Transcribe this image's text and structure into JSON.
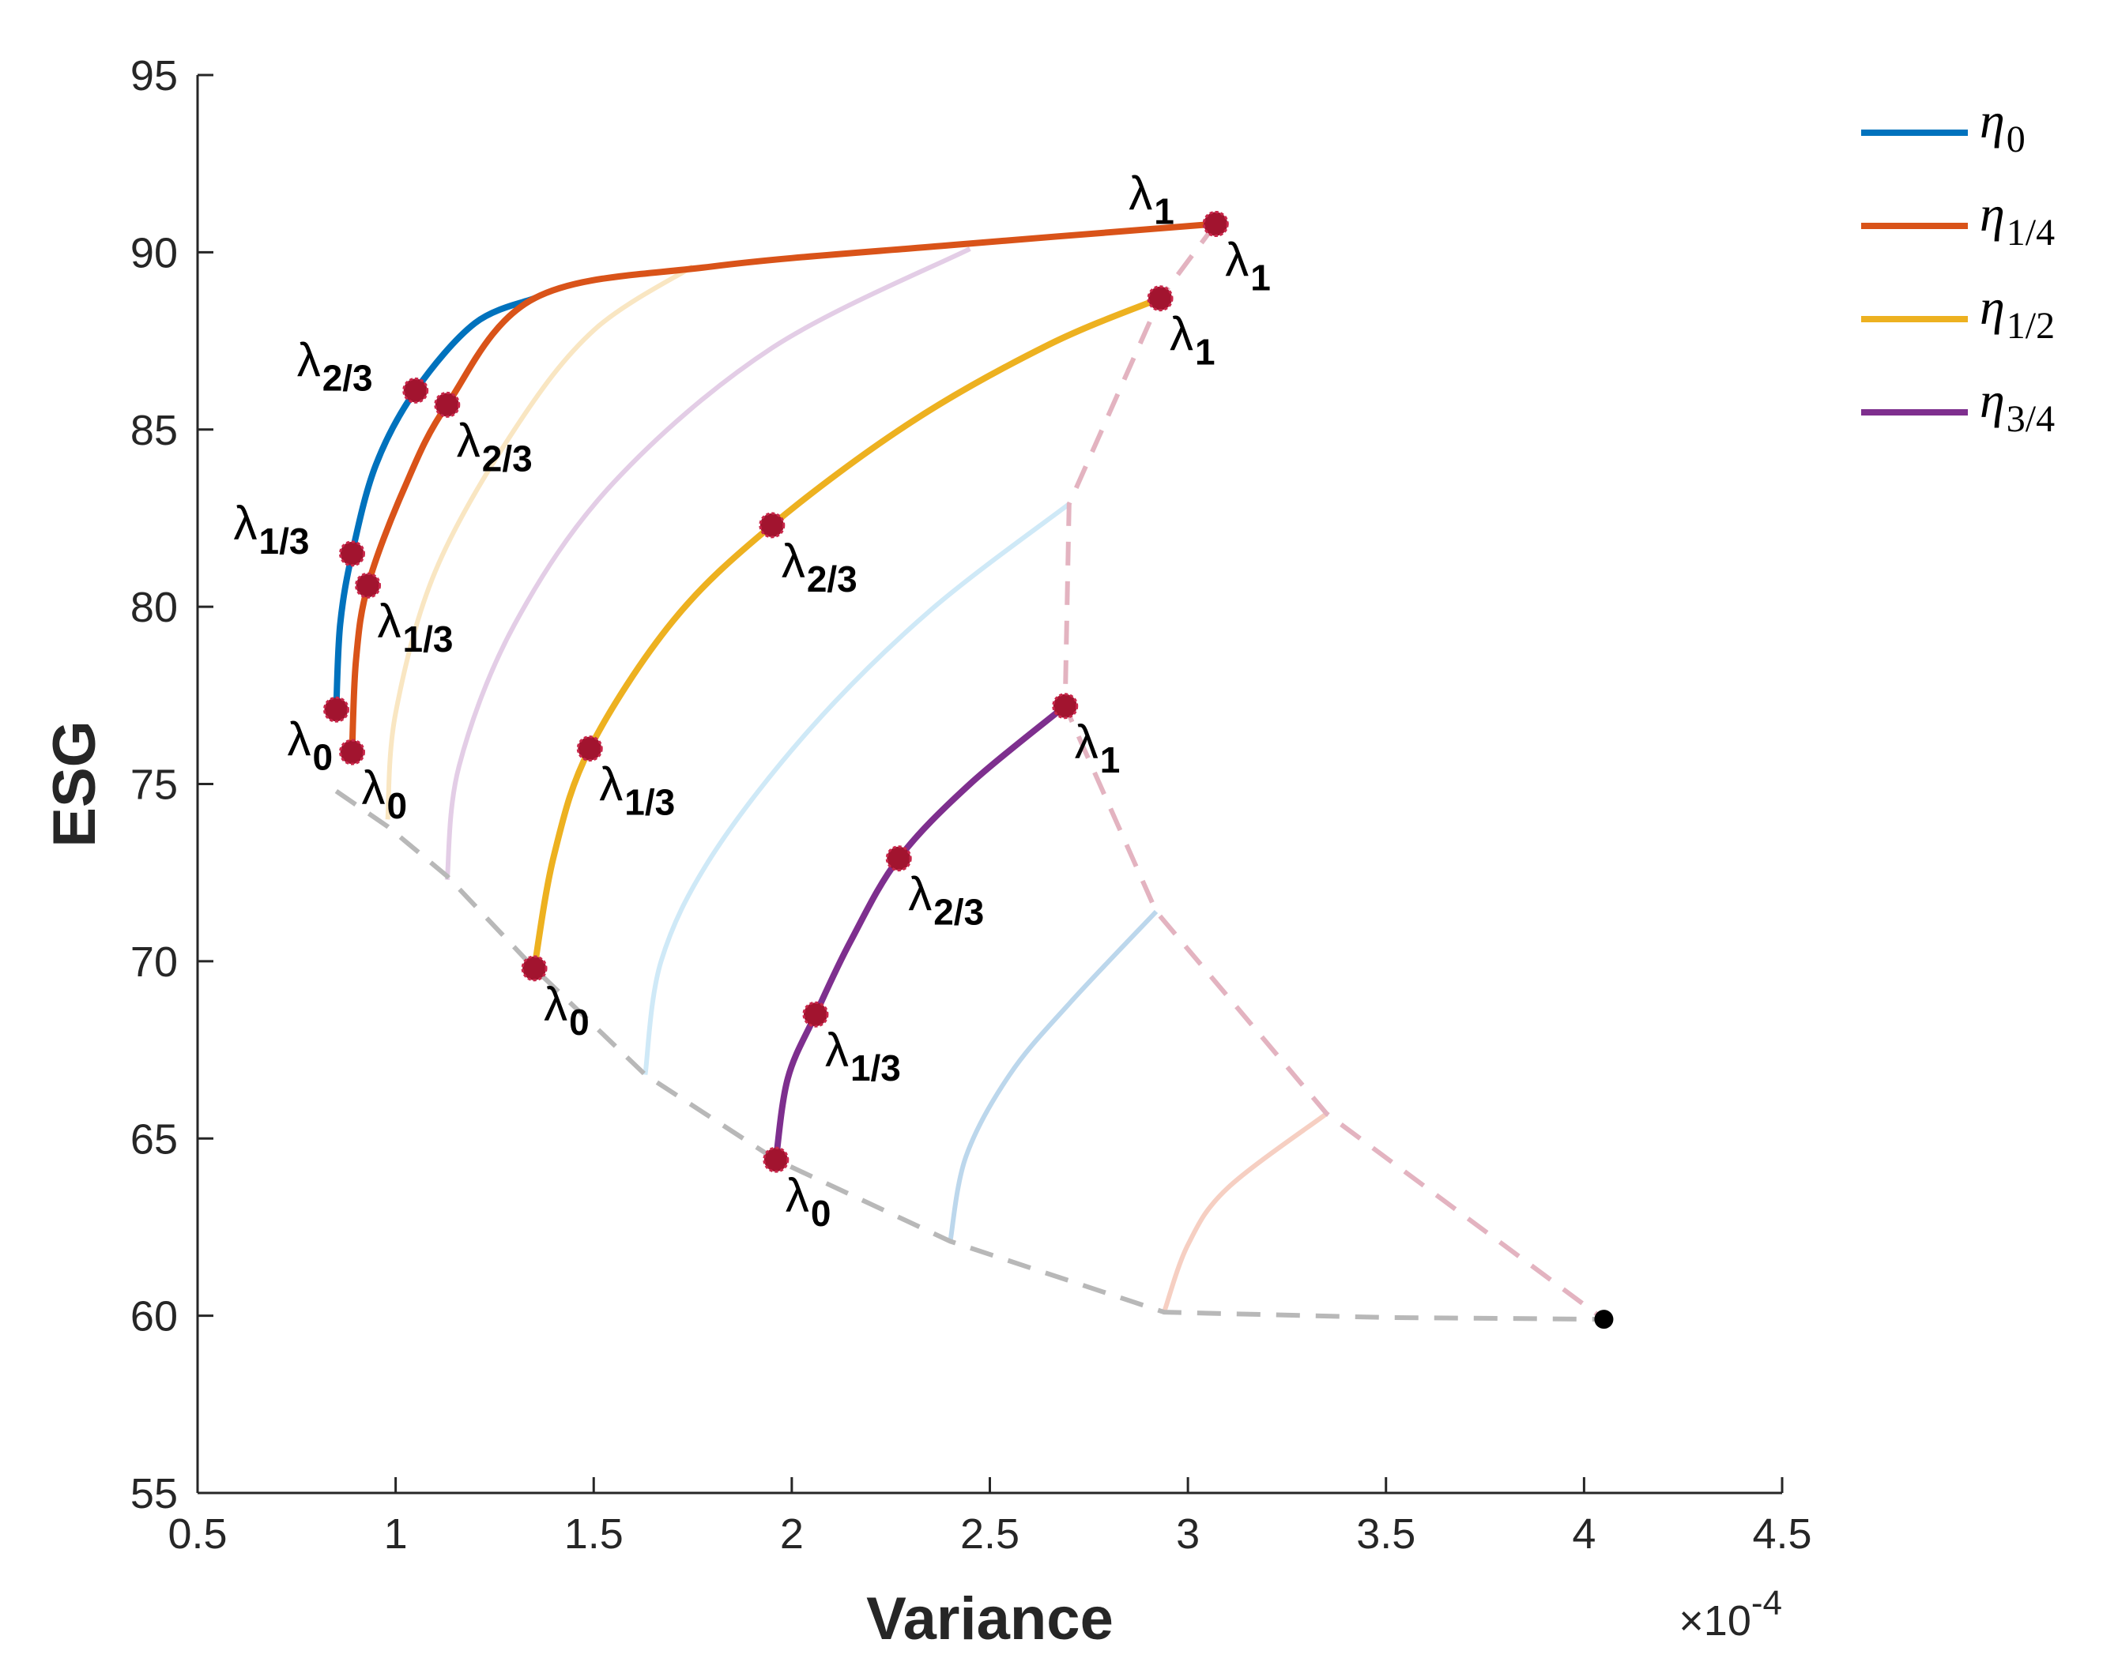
{
  "chart_data": {
    "type": "line",
    "xlabel": "Variance",
    "ylabel": "ESG",
    "x_exponent_label": "×10",
    "x_exponent_power": "-4",
    "xlim": [
      0.5,
      4.5
    ],
    "ylim": [
      55,
      95
    ],
    "xticks": [
      "0.5",
      "1",
      "1.5",
      "2",
      "2.5",
      "3",
      "3.5",
      "4",
      "4.5"
    ],
    "yticks": [
      "55",
      "60",
      "65",
      "70",
      "75",
      "80",
      "85",
      "90",
      "95"
    ],
    "colors": {
      "eta0": "#0072BD",
      "eta14": "#D95319",
      "eta12": "#EDB120",
      "eta34": "#7E2F8E",
      "marker": "#A2142F",
      "gray_dash": "#b8b8b8",
      "pink_dash": "#e3b3c0"
    },
    "legend": [
      {
        "symbol": "η",
        "sub": "0",
        "color": "#0072BD"
      },
      {
        "symbol": "η",
        "sub": "1/4",
        "color": "#D95319"
      },
      {
        "symbol": "η",
        "sub": "1/2",
        "color": "#EDB120"
      },
      {
        "symbol": "η",
        "sub": "3/4",
        "color": "#7E2F8E"
      }
    ],
    "series": [
      {
        "name": "η0",
        "color": "#0072BD",
        "curve": [
          [
            0.85,
            77.1
          ],
          [
            0.86,
            79.5
          ],
          [
            0.89,
            81.5
          ],
          [
            0.95,
            84.0
          ],
          [
            1.05,
            86.1
          ],
          [
            1.2,
            88.0
          ],
          [
            1.35,
            88.7
          ]
        ],
        "markers": [
          {
            "x": 0.85,
            "y": 77.1,
            "label": "λ",
            "sub": "0",
            "side": "bl"
          },
          {
            "x": 0.89,
            "y": 81.5,
            "label": "λ",
            "sub": "1/3",
            "side": "tl"
          },
          {
            "x": 1.05,
            "y": 86.1,
            "label": "λ",
            "sub": "2/3",
            "side": "tl"
          }
        ]
      },
      {
        "name": "η1/4",
        "color": "#D95319",
        "curve": [
          [
            0.89,
            75.9
          ],
          [
            0.9,
            78.5
          ],
          [
            0.93,
            80.6
          ],
          [
            1.02,
            83.3
          ],
          [
            1.13,
            85.7
          ],
          [
            1.35,
            88.7
          ],
          [
            1.8,
            89.6
          ],
          [
            2.4,
            90.2
          ],
          [
            3.07,
            90.8
          ]
        ],
        "markers": [
          {
            "x": 0.89,
            "y": 75.9,
            "label": "λ",
            "sub": "0",
            "side": "br"
          },
          {
            "x": 0.93,
            "y": 80.6,
            "label": "λ",
            "sub": "1/3",
            "side": "br"
          },
          {
            "x": 1.13,
            "y": 85.7,
            "label": "λ",
            "sub": "2/3",
            "side": "br"
          },
          {
            "x": 3.07,
            "y": 90.8,
            "label": "λ",
            "sub": "1",
            "side": "tl"
          },
          {
            "x": 3.07,
            "y": 90.8,
            "label": "λ",
            "sub": "1",
            "side": "br"
          }
        ]
      },
      {
        "name": "η1/2",
        "color": "#EDB120",
        "curve": [
          [
            1.35,
            69.8
          ],
          [
            1.4,
            73.0
          ],
          [
            1.49,
            76.0
          ],
          [
            1.7,
            79.6
          ],
          [
            1.95,
            82.3
          ],
          [
            2.3,
            85.2
          ],
          [
            2.65,
            87.4
          ],
          [
            2.93,
            88.7
          ]
        ],
        "markers": [
          {
            "x": 1.35,
            "y": 69.8,
            "label": "λ",
            "sub": "0",
            "side": "br"
          },
          {
            "x": 1.49,
            "y": 76.0,
            "label": "λ",
            "sub": "1/3",
            "side": "br"
          },
          {
            "x": 1.95,
            "y": 82.3,
            "label": "λ",
            "sub": "2/3",
            "side": "br"
          },
          {
            "x": 2.93,
            "y": 88.7,
            "label": "λ",
            "sub": "1",
            "side": "br"
          }
        ]
      },
      {
        "name": "η3/4",
        "color": "#7E2F8E",
        "curve": [
          [
            1.96,
            64.4
          ],
          [
            1.99,
            66.7
          ],
          [
            2.06,
            68.5
          ],
          [
            2.15,
            70.6
          ],
          [
            2.27,
            72.9
          ],
          [
            2.45,
            75.0
          ],
          [
            2.69,
            77.2
          ]
        ],
        "markers": [
          {
            "x": 1.96,
            "y": 64.4,
            "label": "λ",
            "sub": "0",
            "side": "br"
          },
          {
            "x": 2.06,
            "y": 68.5,
            "label": "λ",
            "sub": "1/3",
            "side": "br"
          },
          {
            "x": 2.27,
            "y": 72.9,
            "label": "λ",
            "sub": "2/3",
            "side": "br"
          },
          {
            "x": 2.69,
            "y": 77.2,
            "label": "λ",
            "sub": "1",
            "side": "br"
          }
        ]
      }
    ],
    "faint_curves": [
      {
        "color": "#f9e6c2",
        "points": [
          [
            0.98,
            74.0
          ],
          [
            1.0,
            77.0
          ],
          [
            1.1,
            81.0
          ],
          [
            1.3,
            85.0
          ],
          [
            1.5,
            87.8
          ],
          [
            1.75,
            89.6
          ]
        ]
      },
      {
        "color": "#e3cde6",
        "points": [
          [
            1.13,
            72.3
          ],
          [
            1.16,
            75.5
          ],
          [
            1.3,
            79.5
          ],
          [
            1.55,
            83.5
          ],
          [
            1.95,
            87.3
          ],
          [
            2.45,
            90.1
          ]
        ]
      },
      {
        "color": "#cfe9f7",
        "points": [
          [
            1.63,
            66.8
          ],
          [
            1.67,
            70.0
          ],
          [
            1.8,
            73.0
          ],
          [
            2.05,
            76.6
          ],
          [
            2.35,
            79.9
          ],
          [
            2.7,
            82.9
          ]
        ]
      },
      {
        "color": "#bcd7ec",
        "points": [
          [
            2.4,
            62.1
          ],
          [
            2.44,
            64.5
          ],
          [
            2.55,
            66.8
          ],
          [
            2.7,
            68.8
          ],
          [
            2.92,
            71.4
          ]
        ]
      },
      {
        "color": "#f6cfc2",
        "points": [
          [
            2.94,
            60.1
          ],
          [
            3.0,
            62.0
          ],
          [
            3.1,
            63.6
          ],
          [
            3.35,
            65.7
          ]
        ]
      }
    ],
    "gray_dashed": [
      [
        0.85,
        74.8
      ],
      [
        0.98,
        73.8
      ],
      [
        1.13,
        72.4
      ],
      [
        1.35,
        69.8
      ],
      [
        1.63,
        66.8
      ],
      [
        1.96,
        64.4
      ],
      [
        2.4,
        62.1
      ],
      [
        2.94,
        60.1
      ],
      [
        3.5,
        59.95
      ],
      [
        4.05,
        59.9
      ]
    ],
    "pink_dashed": [
      [
        3.07,
        90.8
      ],
      [
        2.93,
        88.7
      ],
      [
        2.7,
        82.9
      ],
      [
        2.69,
        77.2
      ],
      [
        2.92,
        71.4
      ],
      [
        3.35,
        65.7
      ],
      [
        4.05,
        59.9
      ]
    ],
    "end_point": {
      "x": 4.05,
      "y": 59.9,
      "color": "#000000"
    }
  }
}
